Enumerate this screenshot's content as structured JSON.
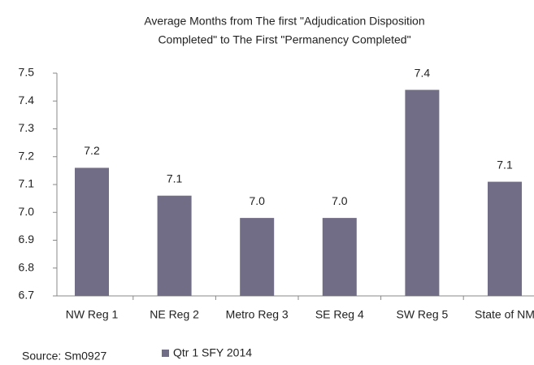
{
  "chart_data": {
    "type": "bar",
    "title": [
      "Average Months from The first \"Adjudication Disposition",
      "Completed\" to The First \"Permanency Completed\""
    ],
    "categories": [
      "NW Reg 1",
      "NE Reg 2",
      "Metro Reg 3",
      "SE Reg 4",
      "SW Reg 5",
      "State of NM"
    ],
    "series": [
      {
        "name": "Qtr 1 SFY 2014",
        "color": "#726d86",
        "values": [
          7.16,
          7.06,
          6.98,
          6.98,
          7.44,
          7.11
        ],
        "value_labels": [
          "7.2",
          "7.1",
          "7.0",
          "7.0",
          "7.4",
          "7.1"
        ]
      }
    ],
    "ylim": [
      6.7,
      7.5
    ],
    "yticks": [
      6.7,
      6.8,
      6.9,
      {
        "value": 7,
        "label": "7.0"
      },
      7.1,
      7.2,
      7.3,
      7.4,
      7.5
    ],
    "source": "Source: Sm0927"
  }
}
